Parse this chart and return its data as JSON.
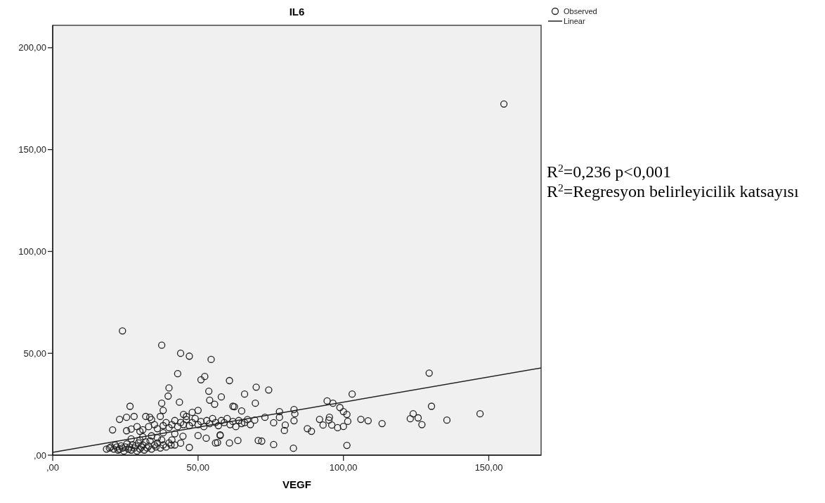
{
  "chart_data": {
    "type": "scatter",
    "title": "IL6",
    "xlabel": "VEGF",
    "xlim": [
      0,
      168
    ],
    "ylim": [
      0,
      211
    ],
    "xticks": [
      {
        "value": 0,
        "label": ",00"
      },
      {
        "value": 50,
        "label": "50,00"
      },
      {
        "value": 100,
        "label": "100,00"
      },
      {
        "value": 150,
        "label": "150,00"
      }
    ],
    "yticks": [
      {
        "value": 0,
        "label": ",00"
      },
      {
        "value": 50,
        "label": "50,00"
      },
      {
        "value": 100,
        "label": "100,00"
      },
      {
        "value": 150,
        "label": "150,00"
      },
      {
        "value": 200,
        "label": "200,00"
      }
    ],
    "grid": false,
    "legend": "top right",
    "annotations": [
      "R$^{2}$=0,236 p<0,001",
      "R$^{2}$=Regresyon belirleyicilik katsayısı"
    ],
    "series": [
      {
        "name": "Observed",
        "marker": "circle",
        "color": "#222222",
        "x": [
          155.2,
          24,
          37.5,
          44,
          47,
          54.5,
          43,
          51,
          52.3,
          60.8,
          40,
          39.7,
          53.7,
          58,
          37.5,
          43.6,
          26.6,
          54,
          55.7,
          62,
          38,
          23,
          25.4,
          28,
          32,
          33.4,
          20.6,
          25.4,
          27,
          30,
          47,
          56,
          60.8,
          57.6,
          50,
          52.8,
          44.8,
          40.7,
          44,
          70,
          74.3,
          66,
          69.7,
          62.5,
          65,
          78,
          83,
          83.3,
          83,
          76,
          80,
          79.7,
          87.6,
          89,
          94.4,
          96.4,
          98.8,
          100,
          101.2,
          103,
          91.8,
          95,
          95.2,
          93,
          96,
          98,
          100,
          101.5,
          106,
          108.5,
          101.2,
          82.8,
          76,
          70.7,
          71.9,
          63.7,
          57.6,
          56.7,
          73,
          78,
          69.5,
          129.5,
          130.3,
          124,
          123,
          125.7,
          127,
          135.6,
          147,
          113.3,
          18.5,
          19.5,
          20,
          21,
          21.5,
          22,
          22.5,
          23,
          23.5,
          24,
          24.5,
          25,
          25.5,
          26,
          26.5,
          27,
          27.5,
          28,
          28.5,
          29,
          29.5,
          30,
          30.5,
          31,
          31.5,
          32,
          32.5,
          33,
          33.5,
          34,
          35,
          35.5,
          36,
          37,
          37.5,
          38,
          39,
          40,
          41,
          42,
          36,
          30,
          27,
          34,
          31,
          33,
          35,
          36,
          38,
          39,
          40,
          41,
          42,
          43,
          44,
          45,
          46,
          47,
          48,
          49,
          50,
          51,
          52,
          53,
          54,
          55,
          56,
          57,
          58,
          59,
          60,
          61,
          62,
          63,
          64,
          65,
          66,
          67,
          68,
          29,
          31,
          34,
          37,
          45,
          48,
          50,
          46,
          42,
          38
        ],
        "values": [
          172.4,
          61,
          54,
          50,
          48.6,
          47,
          40,
          37,
          38.6,
          36.6,
          33,
          29,
          31.4,
          28.6,
          25.5,
          26,
          24,
          27,
          25,
          24,
          22,
          17.6,
          18.6,
          19,
          19,
          18.6,
          12.4,
          12,
          12.8,
          11.7,
          3.8,
          6,
          6,
          9.6,
          9.6,
          8.3,
          9.3,
          5,
          5.9,
          33.4,
          32,
          30,
          25.5,
          23.8,
          21.7,
          21.4,
          22.4,
          20.3,
          16.9,
          15.9,
          14.8,
          12.1,
          13,
          11.7,
          26.6,
          25.5,
          23.4,
          21.4,
          20,
          30,
          17.6,
          17.2,
          18.6,
          14.8,
          14.8,
          13.5,
          14.1,
          16.6,
          17.6,
          16.9,
          4.8,
          3.4,
          5.2,
          7.2,
          6.9,
          7.2,
          10,
          6.2,
          18.6,
          18.6,
          17.2,
          40.3,
          24,
          20.3,
          17.9,
          18.3,
          15,
          17.2,
          20.3,
          15.5,
          3,
          3.5,
          4,
          3,
          5,
          4,
          2.5,
          3,
          4.5,
          3.5,
          2,
          4,
          5.5,
          3,
          4,
          2.5,
          5,
          3.5,
          4.5,
          2,
          6,
          3,
          4,
          5,
          2.5,
          6.5,
          3.5,
          4.5,
          7,
          3,
          5,
          4,
          6,
          3.5,
          7.5,
          5,
          4,
          6,
          7.5,
          5,
          8.5,
          7.5,
          8,
          9.5,
          9,
          14,
          15,
          13,
          14.5,
          16,
          13.5,
          15,
          17,
          14,
          16,
          15,
          17.5,
          14.5,
          16,
          18,
          15,
          16.5,
          14,
          17,
          15.5,
          18,
          16,
          14.5,
          17,
          16,
          18,
          15,
          16.5,
          14,
          17,
          15.5,
          16,
          17.5,
          15,
          14,
          12.5,
          17.5,
          19,
          20,
          21,
          22,
          19,
          10.5,
          11
        ]
      },
      {
        "name": "Linear",
        "type": "line",
        "color": "#222222",
        "x": [
          0,
          168
        ],
        "values": [
          1.4,
          42.8
        ]
      }
    ]
  }
}
